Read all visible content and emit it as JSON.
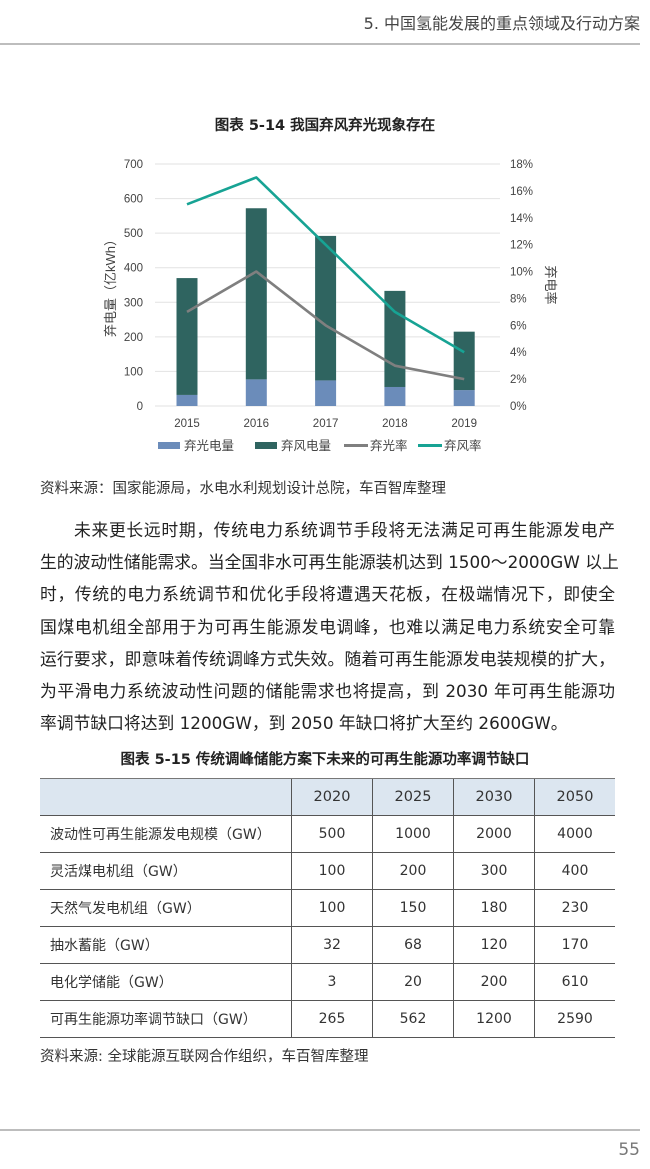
{
  "header": {
    "running_title": "5. 中国氢能发展的重点领域及行动方案"
  },
  "figure1": {
    "title": "图表 5-14  我国弃风弃光现象存在",
    "source": "资料来源：国家能源局，水电水利规划设计总院，车百智库整理"
  },
  "chart_data": {
    "type": "bar+line",
    "title": "图表 5-14  我国弃风弃光现象存在",
    "categories": [
      "2015",
      "2016",
      "2017",
      "2018",
      "2019"
    ],
    "ylabel": "弃电量（亿kWh）",
    "y2label": "弃电率",
    "ylim": [
      0,
      700
    ],
    "yticks": [
      "0",
      "100",
      "200",
      "300",
      "400",
      "500",
      "600",
      "700"
    ],
    "y2lim": [
      0,
      18
    ],
    "y2ticks": [
      "0%",
      "2%",
      "4%",
      "6%",
      "8%",
      "10%",
      "12%",
      "14%",
      "16%",
      "18%"
    ],
    "grid": true,
    "legend_position": "bottom",
    "stacked": true,
    "series": [
      {
        "name": "弃光电量",
        "kind": "bar",
        "axis": "left",
        "color": "#6b8cba",
        "values": [
          32,
          77,
          74,
          55,
          46
        ]
      },
      {
        "name": "弃风电量",
        "kind": "bar",
        "axis": "left",
        "color": "#2f6460",
        "values": [
          338,
          495,
          418,
          278,
          169
        ]
      },
      {
        "name": "弃光率",
        "kind": "line",
        "axis": "right",
        "color": "#7f7f7f",
        "values": [
          7,
          10,
          6,
          3,
          2
        ]
      },
      {
        "name": "弃风率",
        "kind": "line",
        "axis": "right",
        "color": "#17a394",
        "values": [
          15,
          17,
          12,
          7,
          4
        ]
      }
    ]
  },
  "paragraph": {
    "lines": [
      "未来更长远时期，传统电力系统调节手段将无法满足可再生能源发电产",
      "生的波动性储能需求。当全国非水可再生能源装机达到 1500～2000GW 以上",
      "时，传统的电力系统调节和优化手段将遭遇天花板，在极端情况下，即使全",
      "国煤电机组全部用于为可再生能源发电调峰，也难以满足电力系统安全可靠",
      "运行要求，即意味着传统调峰方式失效。随着可再生能源发电装规模的扩大，",
      "为平滑电力系统波动性问题的储能需求也将提高，到 2030 年可再生能源功",
      "率调节缺口将达到 1200GW，到 2050 年缺口将扩大至约 2600GW。"
    ]
  },
  "figure2": {
    "title": "图表 5-15  传统调峰储能方案下未来的可再生能源功率调节缺口",
    "columns": [
      "",
      "2020",
      "2025",
      "2030",
      "2050"
    ],
    "rows": [
      [
        "波动性可再生能源发电规模（GW）",
        "500",
        "1000",
        "2000",
        "4000"
      ],
      [
        "灵活煤电机组（GW）",
        "100",
        "200",
        "300",
        "400"
      ],
      [
        "天然气发电机组（GW）",
        "100",
        "150",
        "180",
        "230"
      ],
      [
        "抽水蓄能（GW）",
        "32",
        "68",
        "120",
        "170"
      ],
      [
        "电化学储能（GW）",
        "3",
        "20",
        "200",
        "610"
      ],
      [
        "可再生能源功率调节缺口（GW）",
        "265",
        "562",
        "1200",
        "2590"
      ]
    ],
    "header_bg": "#dce6f0",
    "source": "资料来源: 全球能源互联网合作组织，车百智库整理"
  },
  "footer": {
    "page_number": "55"
  }
}
